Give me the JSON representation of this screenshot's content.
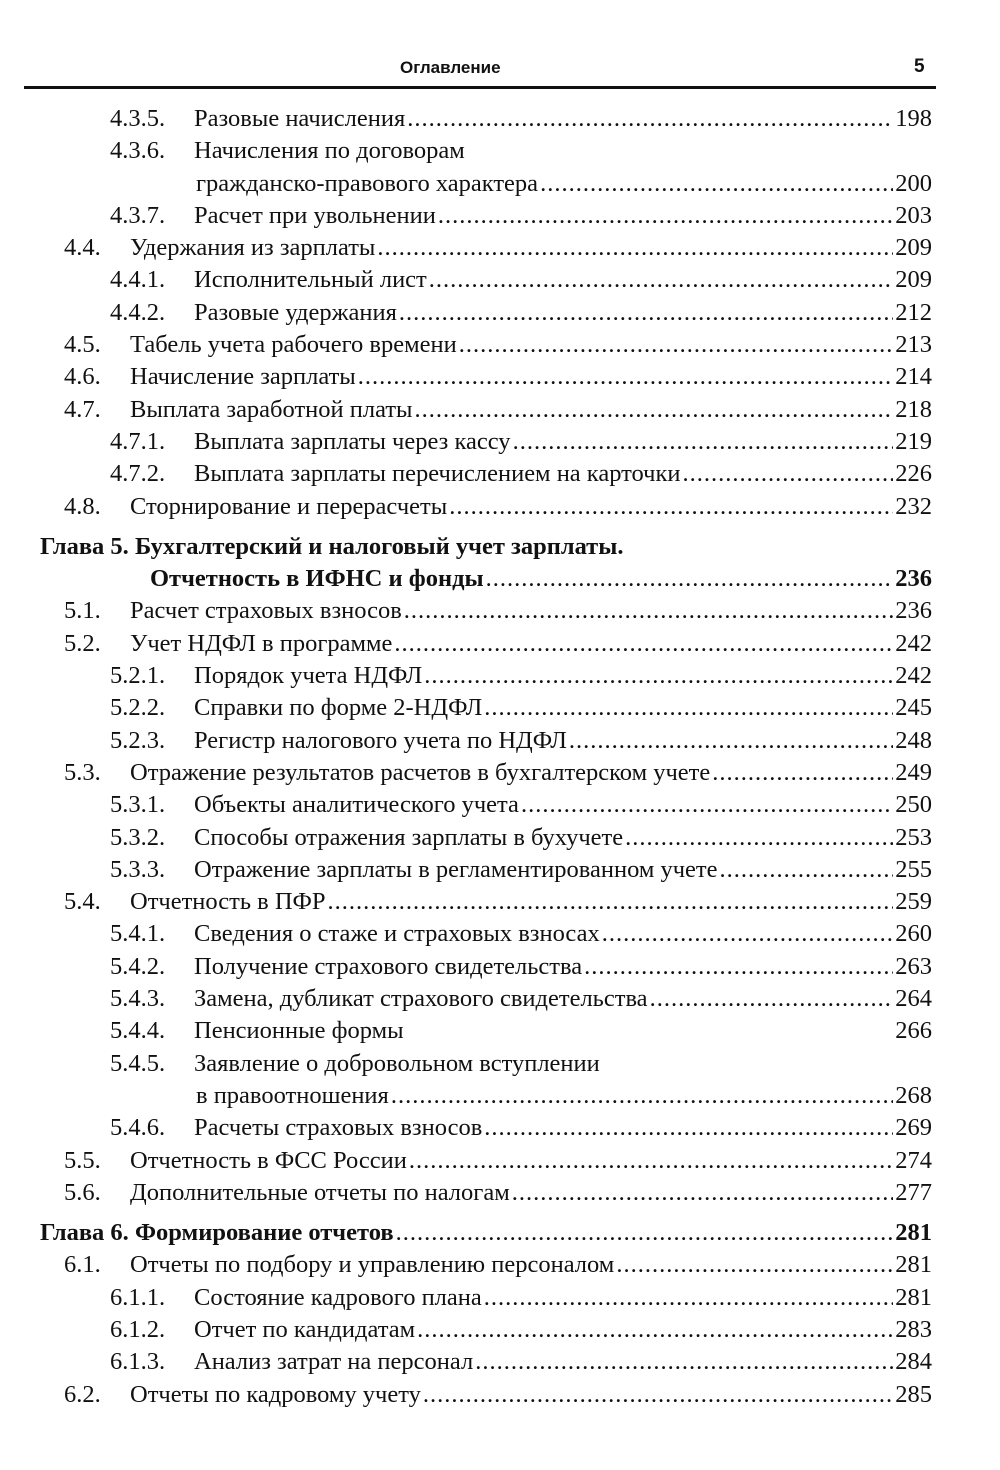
{
  "header": {
    "title": "Оглавление",
    "page_number": "5"
  },
  "entries": [
    {
      "level": 2,
      "num": "4.3.5.",
      "lines": [
        "Разовые начисления"
      ],
      "page": "198"
    },
    {
      "level": 2,
      "num": "4.3.6.",
      "lines": [
        "Начисления по договорам",
        "гражданско-правового характера"
      ],
      "page": "200"
    },
    {
      "level": 2,
      "num": "4.3.7.",
      "lines": [
        "Расчет при увольнении"
      ],
      "page": "203"
    },
    {
      "level": 1,
      "num": "4.4.",
      "lines": [
        "Удержания из зарплаты"
      ],
      "page": "209"
    },
    {
      "level": 2,
      "num": "4.4.1.",
      "lines": [
        "Исполнительный лист"
      ],
      "page": "209"
    },
    {
      "level": 2,
      "num": "4.4.2.",
      "lines": [
        "Разовые удержания"
      ],
      "page": "212"
    },
    {
      "level": 1,
      "num": "4.5.",
      "lines": [
        "Табель учета рабочего времени"
      ],
      "page": "213"
    },
    {
      "level": 1,
      "num": "4.6.",
      "lines": [
        "Начисление зарплаты"
      ],
      "page": "214"
    },
    {
      "level": 1,
      "num": "4.7.",
      "lines": [
        "Выплата заработной платы"
      ],
      "page": "218"
    },
    {
      "level": 2,
      "num": "4.7.1.",
      "lines": [
        "Выплата зарплаты через кассу"
      ],
      "page": "219"
    },
    {
      "level": 2,
      "num": "4.7.2.",
      "lines": [
        "Выплата зарплаты перечислением на карточки"
      ],
      "page": "226"
    },
    {
      "level": 1,
      "num": "4.8.",
      "lines": [
        "Сторнирование и перерасчеты"
      ],
      "page": "232"
    },
    {
      "level": 0,
      "num": "Глава 5.",
      "lines": [
        "Бухгалтерский и налоговый учет зарплаты.",
        "Отчетность в ИФНС и фонды"
      ],
      "page": "236"
    },
    {
      "level": 1,
      "num": "5.1.",
      "lines": [
        "Расчет страховых взносов"
      ],
      "page": "236"
    },
    {
      "level": 1,
      "num": "5.2.",
      "lines": [
        "Учет НДФЛ в программе"
      ],
      "page": "242"
    },
    {
      "level": 2,
      "num": "5.2.1.",
      "lines": [
        "Порядок учета НДФЛ"
      ],
      "page": "242"
    },
    {
      "level": 2,
      "num": "5.2.2.",
      "lines": [
        "Справки по форме 2-НДФЛ"
      ],
      "page": "245"
    },
    {
      "level": 2,
      "num": "5.2.3.",
      "lines": [
        "Регистр налогового учета по НДФЛ"
      ],
      "page": "248"
    },
    {
      "level": 1,
      "num": "5.3.",
      "lines": [
        "Отражение результатов расчетов в бухгалтерском учете"
      ],
      "page": "249"
    },
    {
      "level": 2,
      "num": "5.3.1.",
      "lines": [
        "Объекты аналитического учета"
      ],
      "page": "250"
    },
    {
      "level": 2,
      "num": "5.3.2.",
      "lines": [
        "Способы отражения зарплаты в бухучете"
      ],
      "page": "253"
    },
    {
      "level": 2,
      "num": "5.3.3.",
      "lines": [
        "Отражение зарплаты в регламентированном учете"
      ],
      "page": "255"
    },
    {
      "level": 1,
      "num": "5.4.",
      "lines": [
        "Отчетность в ПФР"
      ],
      "page": "259"
    },
    {
      "level": 2,
      "num": "5.4.1.",
      "lines": [
        "Сведения о стаже и страховых взносах"
      ],
      "page": "260"
    },
    {
      "level": 2,
      "num": "5.4.2.",
      "lines": [
        "Получение страхового свидетельства"
      ],
      "page": "263"
    },
    {
      "level": 2,
      "num": "5.4.3.",
      "lines": [
        "Замена, дубликат страхового свидетельства"
      ],
      "page": "264"
    },
    {
      "level": 2,
      "num": "5.4.4.",
      "lines": [
        "Пенсионные формы"
      ],
      "page": "266",
      "no_leader": true
    },
    {
      "level": 2,
      "num": "5.4.5.",
      "lines": [
        "Заявление о добровольном вступлении",
        "в правоотношения"
      ],
      "page": "268"
    },
    {
      "level": 2,
      "num": "5.4.6.",
      "lines": [
        "Расчеты страховых взносов"
      ],
      "page": "269"
    },
    {
      "level": 1,
      "num": "5.5.",
      "lines": [
        "Отчетность в ФСС России"
      ],
      "page": "274"
    },
    {
      "level": 1,
      "num": "5.6.",
      "lines": [
        "Дополнительные отчеты по налогам"
      ],
      "page": "277"
    },
    {
      "level": 0,
      "num": "Глава 6.",
      "lines": [
        "Формирование отчетов"
      ],
      "page": "281"
    },
    {
      "level": 1,
      "num": "6.1.",
      "lines": [
        "Отчеты по подбору и управлению персоналом"
      ],
      "page": "281"
    },
    {
      "level": 2,
      "num": "6.1.1.",
      "lines": [
        "Состояние кадрового плана"
      ],
      "page": "281"
    },
    {
      "level": 2,
      "num": "6.1.2.",
      "lines": [
        "Отчет по кандидатам"
      ],
      "page": "283"
    },
    {
      "level": 2,
      "num": "6.1.3.",
      "lines": [
        "Анализ затрат на персонал"
      ],
      "page": "284"
    },
    {
      "level": 1,
      "num": "6.2.",
      "lines": [
        "Отчеты по кадровому учету"
      ],
      "page": "285"
    }
  ]
}
